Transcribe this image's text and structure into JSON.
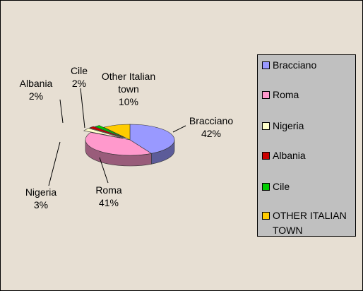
{
  "chart_data": {
    "type": "pie",
    "categories": [
      "Bracciano",
      "Roma",
      "Nigeria",
      "Albania",
      "Cile",
      "OTHER ITALIAN TOWN"
    ],
    "data_label_names": [
      "Bracciano",
      "Roma",
      "Nigeria",
      "Albania",
      "Cile",
      "Other Italian town"
    ],
    "values": [
      42,
      41,
      3,
      2,
      2,
      10
    ],
    "value_labels": [
      "42%",
      "41%",
      "3%",
      "2%",
      "2%",
      "10%"
    ],
    "colors": [
      "#9999ff",
      "#ff99cc",
      "#ffffcc",
      "#cc0000",
      "#00cc00",
      "#ffcc00"
    ],
    "legend": "right"
  }
}
